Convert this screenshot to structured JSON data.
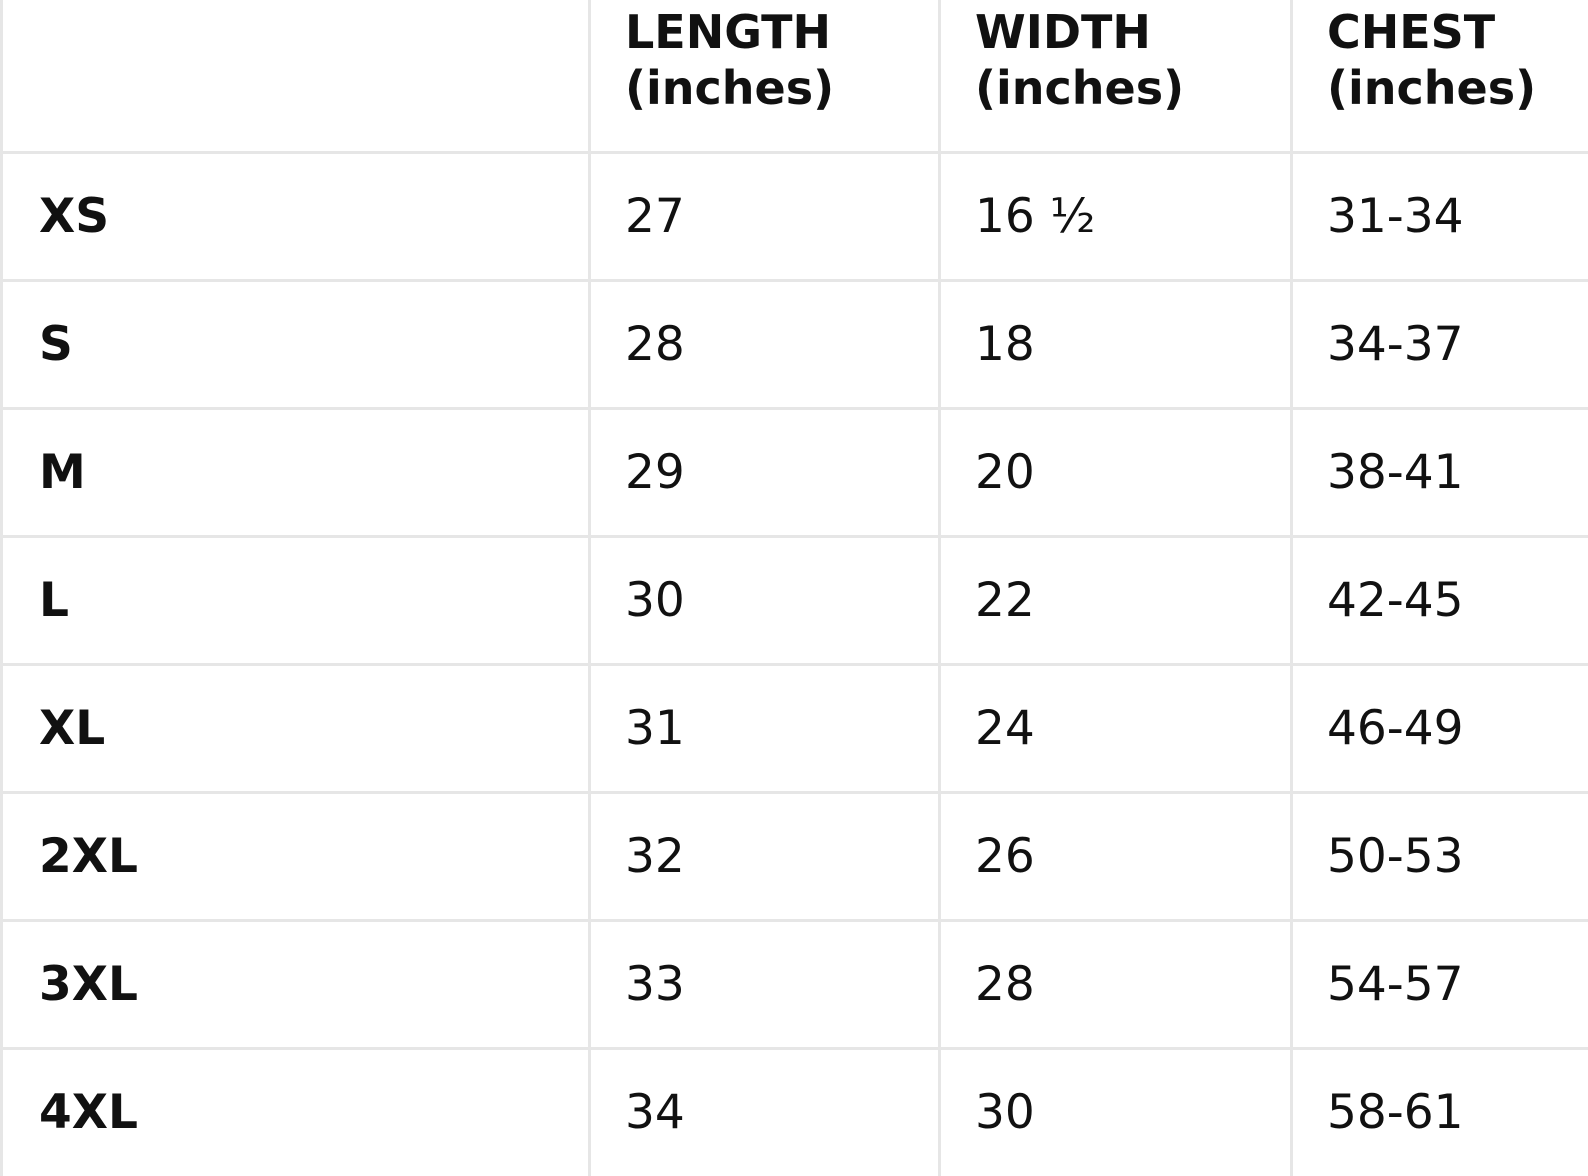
{
  "table": {
    "columns": [
      {
        "key": "size",
        "line1": "",
        "line2": ""
      },
      {
        "key": "length",
        "line1": "LENGTH",
        "line2": "(inches)"
      },
      {
        "key": "width",
        "line1": "WIDTH",
        "line2": "(inches)"
      },
      {
        "key": "chest",
        "line1": "CHEST",
        "line2": "(inches)"
      }
    ],
    "rows": [
      {
        "size": "XS",
        "length": "27",
        "width": "16 ½",
        "chest": "31-34"
      },
      {
        "size": "S",
        "length": "28",
        "width": "18",
        "chest": "34-37"
      },
      {
        "size": "M",
        "length": "29",
        "width": "20",
        "chest": "38-41"
      },
      {
        "size": "L",
        "length": "30",
        "width": "22",
        "chest": "42-45"
      },
      {
        "size": "XL",
        "length": "31",
        "width": "24",
        "chest": "46-49"
      },
      {
        "size": "2XL",
        "length": "32",
        "width": "26",
        "chest": "50-53"
      },
      {
        "size": "3XL",
        "length": "33",
        "width": "28",
        "chest": "54-57"
      },
      {
        "size": "4XL",
        "length": "34",
        "width": "30",
        "chest": "58-61"
      }
    ]
  },
  "colors": {
    "border": "#e6e6e6",
    "text": "#111111",
    "background": "#ffffff"
  }
}
